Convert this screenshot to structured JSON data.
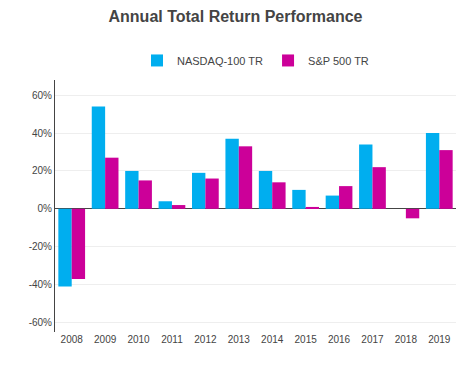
{
  "chart_data": {
    "type": "bar",
    "title": "Annual Total Return Performance",
    "categories": [
      "2008",
      "2009",
      "2010",
      "2011",
      "2012",
      "2013",
      "2014",
      "2015",
      "2016",
      "2017",
      "2018",
      "2019"
    ],
    "series": [
      {
        "name": "NASDAQ-100 TR",
        "color": "#00AEEF",
        "values": [
          -41,
          54,
          20,
          4,
          19,
          37,
          20,
          10,
          7,
          34,
          0,
          40
        ]
      },
      {
        "name": "S&P 500 TR",
        "color": "#CC0099",
        "values": [
          -37,
          27,
          15,
          2,
          16,
          33,
          14,
          1,
          12,
          22,
          -5,
          31
        ]
      }
    ],
    "ylim": [
      -65,
      68
    ],
    "yticks": [
      {
        "value": -60,
        "label": "-60%"
      },
      {
        "value": -40,
        "label": "-40%"
      },
      {
        "value": -20,
        "label": "-20%"
      },
      {
        "value": 0,
        "label": "0%"
      },
      {
        "value": 20,
        "label": "20%"
      },
      {
        "value": 40,
        "label": "40%"
      },
      {
        "value": 60,
        "label": "60%"
      }
    ],
    "grid": true,
    "legend": "top"
  }
}
